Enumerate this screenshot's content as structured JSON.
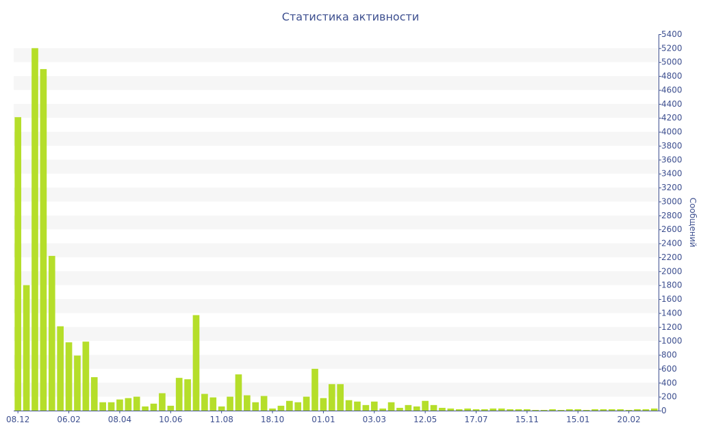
{
  "chart_data": {
    "type": "bar",
    "title": "Статистика активности",
    "xlabel": "",
    "ylabel": "Сообщений",
    "y_axis_side": "right",
    "ylim": [
      0,
      5400
    ],
    "y_ticks": [
      0,
      200,
      400,
      600,
      800,
      1000,
      1200,
      1400,
      1600,
      1800,
      2000,
      2200,
      2400,
      2600,
      2800,
      3000,
      3200,
      3400,
      3600,
      3800,
      4000,
      4200,
      4400,
      4600,
      4800,
      5000,
      5200,
      5400
    ],
    "x_tick_labels": [
      {
        "index": 0,
        "label": "08.12"
      },
      {
        "index": 6,
        "label": "06.02"
      },
      {
        "index": 12,
        "label": "08.04"
      },
      {
        "index": 18,
        "label": "10.06"
      },
      {
        "index": 24,
        "label": "11.08"
      },
      {
        "index": 30,
        "label": "18.10"
      },
      {
        "index": 36,
        "label": "01.01"
      },
      {
        "index": 42,
        "label": "03.03"
      },
      {
        "index": 48,
        "label": "12.05"
      },
      {
        "index": 54,
        "label": "17.07"
      },
      {
        "index": 60,
        "label": "15.11"
      },
      {
        "index": 66,
        "label": "15.01"
      },
      {
        "index": 72,
        "label": "20.02"
      }
    ],
    "grid": "alternating horizontal bands",
    "legend": "none",
    "colors": {
      "bar": "#b5de2a",
      "axis": "#3d4f8f",
      "band": "#f6f6f6"
    },
    "values": [
      4210,
      1800,
      5200,
      4900,
      2220,
      1210,
      980,
      790,
      990,
      480,
      120,
      120,
      160,
      180,
      200,
      60,
      100,
      250,
      70,
      470,
      450,
      1370,
      240,
      190,
      60,
      200,
      520,
      220,
      120,
      210,
      30,
      70,
      140,
      120,
      200,
      600,
      180,
      380,
      380,
      150,
      130,
      80,
      130,
      30,
      120,
      40,
      80,
      60,
      140,
      80,
      40,
      30,
      20,
      30,
      20,
      20,
      30,
      30,
      20,
      20,
      20,
      10,
      10,
      20,
      10,
      20,
      20,
      10,
      20,
      20,
      20,
      20,
      10,
      20,
      20,
      30
    ]
  }
}
